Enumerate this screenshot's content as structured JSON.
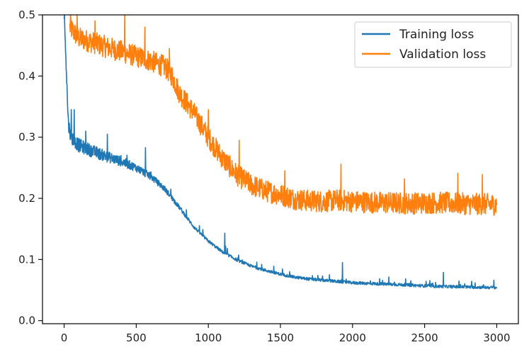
{
  "chart_data": {
    "type": "line",
    "title": "",
    "xlabel": "",
    "ylabel": "",
    "xlim": [
      -150,
      3150
    ],
    "ylim": [
      -0.005,
      0.5
    ],
    "x_ticks": [
      0,
      500,
      1000,
      1500,
      2000,
      2500,
      3000
    ],
    "x_tick_labels": [
      "0",
      "500",
      "1000",
      "1500",
      "2000",
      "2500",
      "3000"
    ],
    "y_ticks": [
      0.0,
      0.1,
      0.2,
      0.3,
      0.4,
      0.5
    ],
    "y_tick_labels": [
      "0.0",
      "0.1",
      "0.2",
      "0.3",
      "0.4",
      "0.5"
    ],
    "grid": false,
    "legend_position": "top-right",
    "series": [
      {
        "name": "Training loss",
        "color": "#1f77b4",
        "x": [
          0,
          10,
          20,
          30,
          50,
          100,
          200,
          300,
          400,
          500,
          600,
          700,
          800,
          900,
          1000,
          1100,
          1200,
          1300,
          1400,
          1500,
          1600,
          1700,
          1800,
          1900,
          2000,
          2200,
          2400,
          2600,
          2800,
          3000
        ],
        "values": [
          0.5,
          0.45,
          0.38,
          0.32,
          0.3,
          0.287,
          0.277,
          0.268,
          0.26,
          0.25,
          0.236,
          0.215,
          0.185,
          0.153,
          0.13,
          0.112,
          0.099,
          0.089,
          0.082,
          0.076,
          0.071,
          0.068,
          0.066,
          0.064,
          0.062,
          0.06,
          0.058,
          0.056,
          0.055,
          0.054
        ],
        "spikes": [
          {
            "x": 50,
            "y": 0.345
          },
          {
            "x": 70,
            "y": 0.345
          },
          {
            "x": 150,
            "y": 0.31
          },
          {
            "x": 300,
            "y": 0.305
          },
          {
            "x": 565,
            "y": 0.283
          },
          {
            "x": 740,
            "y": 0.215
          },
          {
            "x": 1115,
            "y": 0.143
          },
          {
            "x": 1930,
            "y": 0.095
          },
          {
            "x": 2630,
            "y": 0.079
          },
          {
            "x": 2980,
            "y": 0.066
          }
        ]
      },
      {
        "name": "Validation loss",
        "color": "#ff7f0e",
        "x": [
          40,
          100,
          200,
          300,
          400,
          500,
          600,
          700,
          750,
          800,
          900,
          1000,
          1100,
          1200,
          1300,
          1400,
          1500,
          1600,
          1700,
          1800,
          1900,
          2000,
          2200,
          2400,
          2600,
          2800,
          3000
        ],
        "values": [
          0.48,
          0.462,
          0.455,
          0.447,
          0.44,
          0.432,
          0.425,
          0.415,
          0.4,
          0.372,
          0.34,
          0.3,
          0.265,
          0.238,
          0.222,
          0.212,
          0.206,
          0.199,
          0.196,
          0.195,
          0.197,
          0.195,
          0.193,
          0.192,
          0.193,
          0.191,
          0.19
        ],
        "spikes": [
          {
            "x": 45,
            "y": 0.5
          },
          {
            "x": 90,
            "y": 0.5
          },
          {
            "x": 215,
            "y": 0.49
          },
          {
            "x": 420,
            "y": 0.5
          },
          {
            "x": 560,
            "y": 0.48
          },
          {
            "x": 730,
            "y": 0.445
          },
          {
            "x": 1000,
            "y": 0.345
          },
          {
            "x": 1215,
            "y": 0.295
          },
          {
            "x": 1530,
            "y": 0.245
          },
          {
            "x": 1920,
            "y": 0.256
          },
          {
            "x": 2360,
            "y": 0.232
          },
          {
            "x": 2730,
            "y": 0.241
          },
          {
            "x": 2900,
            "y": 0.239
          }
        ]
      }
    ]
  }
}
